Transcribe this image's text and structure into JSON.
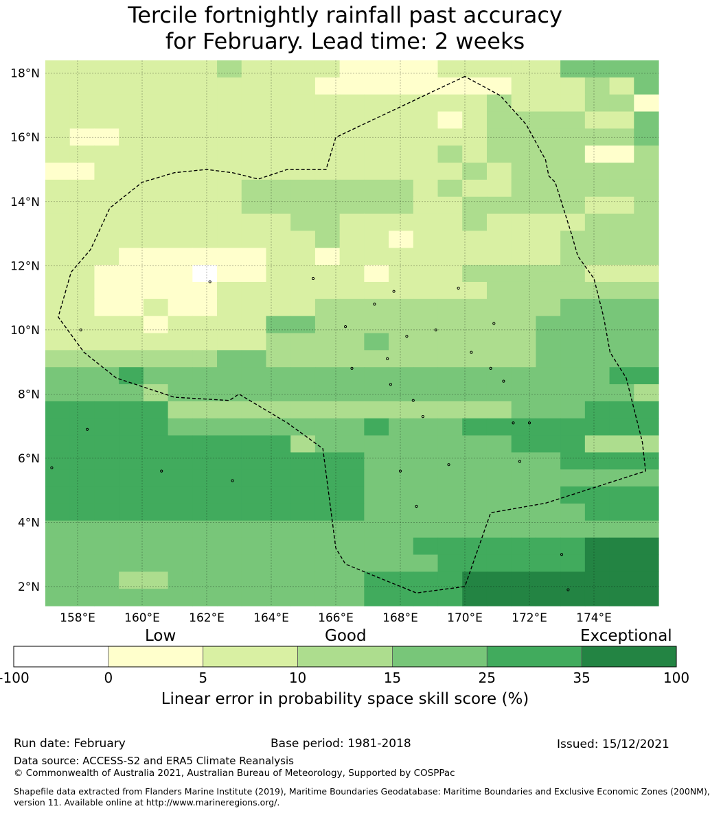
{
  "title_line1": "Tercile fortnightly rainfall past accuracy",
  "title_line2": "for February. Lead time: 2 weeks",
  "map": {
    "lon_range": [
      157,
      176
    ],
    "lat_range": [
      1.4,
      18.4
    ],
    "cell_size_deg": 0.833,
    "lat_ticks": [
      {
        "value": 2,
        "label": "2°N"
      },
      {
        "value": 4,
        "label": "4°N"
      },
      {
        "value": 6,
        "label": "6°N"
      },
      {
        "value": 8,
        "label": "8°N"
      },
      {
        "value": 10,
        "label": "10°N"
      },
      {
        "value": 12,
        "label": "12°N"
      },
      {
        "value": 14,
        "label": "14°N"
      },
      {
        "value": 16,
        "label": "16°N"
      },
      {
        "value": 18,
        "label": "18°N"
      }
    ],
    "lon_ticks": [
      {
        "value": 158,
        "label": "158°E"
      },
      {
        "value": 160,
        "label": "160°E"
      },
      {
        "value": 162,
        "label": "162°E"
      },
      {
        "value": 164,
        "label": "164°E"
      },
      {
        "value": 166,
        "label": "166°E"
      },
      {
        "value": 168,
        "label": "168°E"
      },
      {
        "value": 170,
        "label": "170°E"
      },
      {
        "value": 172,
        "label": "172°E"
      },
      {
        "value": 174,
        "label": "174°E"
      }
    ],
    "grid_rows_north_to_south": [
      "2222222322221111222224444",
      "2222222222211111111222324",
      "2222222222222222223222331",
      "2222222222222222123333224",
      "2112222222222222223333334",
      "2222222222222222323333113",
      "1122222222222222232333333",
      "2222222233333332322333333",
      "2222222233333332233333223",
      "2222222222332222232222333",
      "2222222222232212222223333",
      "2221111112212222222223333",
      "2211110112222122233333222",
      "2211111222222222223333333",
      "2211211222233333333334444",
      "2222122224433333333344444",
      "2222222223333433333344444",
      "3333333443333333333344444",
      "4445444444444444444444455",
      "4444344444444444444444443",
      "5555533333333333333444555",
      "5555544444444544455555555",
      "5555555555344444444555333",
      "5555555555555444444445555",
      "5555555555555444444444444",
      "5555555555555444444445555",
      "5555555555555444444444555",
      "4444444444444444444444444",
      "4444444444444445555555666",
      "4444444444444444555555666",
      "4443344444444555566666666",
      "4444444444444555566666666"
    ],
    "eez_boundary": [
      [
        170.0,
        17.9
      ],
      [
        166.0,
        16.0
      ],
      [
        165.7,
        15.0
      ],
      [
        164.5,
        15.0
      ],
      [
        163.6,
        14.7
      ],
      [
        162.8,
        14.9
      ],
      [
        162.0,
        15.0
      ],
      [
        161.0,
        14.9
      ],
      [
        160.0,
        14.6
      ],
      [
        159.0,
        13.8
      ],
      [
        158.4,
        12.5
      ],
      [
        157.8,
        11.8
      ],
      [
        157.4,
        10.4
      ],
      [
        158.2,
        9.3
      ],
      [
        159.2,
        8.5
      ],
      [
        161.0,
        7.9
      ],
      [
        162.7,
        7.8
      ],
      [
        163.0,
        8.0
      ],
      [
        164.5,
        7.1
      ],
      [
        165.6,
        6.3
      ],
      [
        166.0,
        3.2
      ],
      [
        166.3,
        2.7
      ],
      [
        168.5,
        1.8
      ],
      [
        170.0,
        2.0
      ],
      [
        170.8,
        4.3
      ],
      [
        172.5,
        4.6
      ],
      [
        175.6,
        5.6
      ],
      [
        175.5,
        6.5
      ],
      [
        175.0,
        8.5
      ],
      [
        174.5,
        9.3
      ],
      [
        174.3,
        10.4
      ],
      [
        174.0,
        11.6
      ],
      [
        173.5,
        12.3
      ],
      [
        173.3,
        13.0
      ],
      [
        172.8,
        14.6
      ],
      [
        172.6,
        14.8
      ],
      [
        172.5,
        15.3
      ],
      [
        171.9,
        16.4
      ],
      [
        171.1,
        17.3
      ]
    ],
    "islands": [
      [
        158.3,
        6.9
      ],
      [
        162.8,
        5.3
      ],
      [
        168.7,
        7.3
      ],
      [
        171.5,
        7.1
      ],
      [
        172.0,
        7.1
      ],
      [
        171.7,
        5.9
      ],
      [
        169.5,
        5.8
      ],
      [
        173.0,
        3.0
      ],
      [
        173.2,
        1.9
      ],
      [
        166.5,
        8.8
      ],
      [
        165.3,
        11.6
      ],
      [
        162.1,
        11.5
      ],
      [
        169.8,
        11.3
      ],
      [
        167.8,
        11.2
      ],
      [
        166.3,
        10.1
      ],
      [
        168.2,
        9.8
      ],
      [
        169.1,
        10.0
      ],
      [
        170.2,
        9.3
      ],
      [
        167.7,
        8.3
      ],
      [
        170.8,
        8.8
      ],
      [
        171.2,
        8.4
      ],
      [
        168.4,
        7.8
      ],
      [
        168.5,
        4.5
      ],
      [
        168.0,
        5.6
      ],
      [
        160.6,
        5.6
      ],
      [
        158.1,
        10.0
      ],
      [
        167.2,
        10.8
      ],
      [
        167.6,
        9.1
      ],
      [
        170.9,
        10.2
      ],
      [
        157.2,
        5.7
      ]
    ]
  },
  "legend": {
    "levels": [
      "Low",
      "Good",
      "Exceptional"
    ],
    "ticks": [
      "-100",
      "0",
      "5",
      "10",
      "15",
      "25",
      "35",
      "100"
    ],
    "colors": [
      "#ffffff",
      "#ffffcc",
      "#d9f0a3",
      "#addd8e",
      "#78c679",
      "#41ab5d",
      "#238443"
    ],
    "label": "Linear error in probability space skill score (%)"
  },
  "footer": {
    "run_date": "Run date: February",
    "base_period": "Base period: 1981-2018",
    "issued": "Issued: 15/12/2021",
    "data_source": "Data source: ACCESS-S2 and ERA5 Climate Reanalysis",
    "copyright": "© Commonwealth of Australia 2021, Australian Bureau of Meteorology, Supported by COSPPac",
    "shapefile_line1": "Shapefile data extracted from Flanders Marine Institute (2019), Maritime Boundaries Geodatabase: Maritime Boundaries and Exclusive Economic Zones (200NM),",
    "shapefile_line2": "version 11. Available online at http://www.marineregions.org/."
  }
}
